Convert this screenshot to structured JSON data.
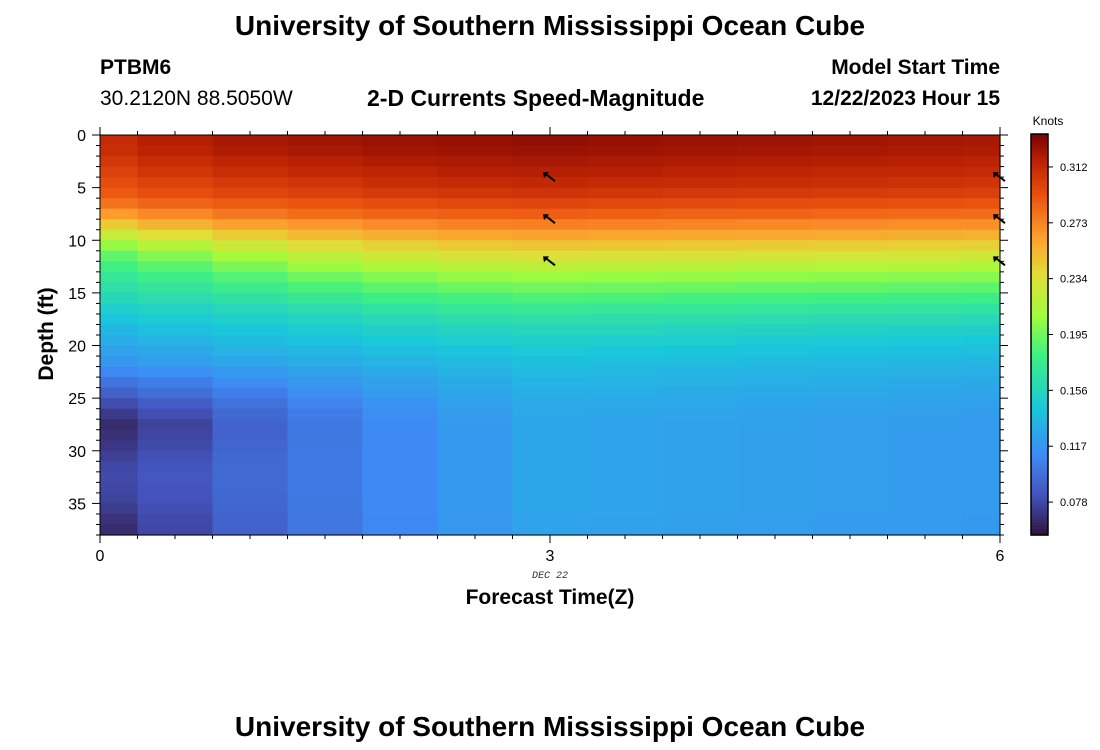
{
  "header": {
    "title": "University of Southern Mississippi Ocean Cube",
    "station_id": "PTBM6",
    "coords": "30.2120N  88.5050W",
    "subtitle": "2-D Currents Speed-Magnitude",
    "model_start_label": "Model Start Time",
    "model_start_value": "12/22/2023 Hour 15"
  },
  "footer": {
    "title": "University of Southern Mississippi Ocean Cube"
  },
  "chart_data": {
    "type": "heatmap",
    "xlabel": "Forecast Time(Z)",
    "ylabel": "Depth (ft)",
    "date_label": "DEC 22",
    "x_ticks": [
      "0",
      "3",
      "6"
    ],
    "x_range": [
      0,
      6
    ],
    "y_ticks": [
      "0",
      "5",
      "10",
      "15",
      "20",
      "25",
      "30",
      "35"
    ],
    "y_range": [
      0,
      38
    ],
    "y_inverted": true,
    "x": [
      0,
      0.5,
      1,
      1.5,
      2,
      2.5,
      3,
      3.5,
      4,
      4.5,
      5,
      5.5,
      6
    ],
    "depth_ft": [
      0.5,
      1.5,
      2.5,
      3.5,
      4.5,
      5.5,
      6.5,
      7.5,
      8.5,
      9.5,
      10.5,
      11.5,
      12.5,
      13.5,
      14.5,
      15.5,
      16.5,
      17.5,
      18.5,
      19.5,
      20.5,
      21.5,
      22.5,
      23.5,
      24.5,
      25.5,
      26.5,
      27.5,
      28.5,
      29.5,
      30.5,
      31.5,
      32.5,
      33.5,
      34.5,
      35.5,
      36.5,
      37.5
    ],
    "values": [
      [
        0.312,
        0.318,
        0.322,
        0.324,
        0.326,
        0.327,
        0.328,
        0.327,
        0.326,
        0.325,
        0.324,
        0.323,
        0.322
      ],
      [
        0.31,
        0.316,
        0.32,
        0.322,
        0.324,
        0.325,
        0.326,
        0.325,
        0.324,
        0.323,
        0.322,
        0.321,
        0.32
      ],
      [
        0.305,
        0.311,
        0.315,
        0.317,
        0.32,
        0.321,
        0.322,
        0.321,
        0.32,
        0.319,
        0.318,
        0.317,
        0.316
      ],
      [
        0.3,
        0.306,
        0.31,
        0.313,
        0.315,
        0.317,
        0.318,
        0.317,
        0.316,
        0.315,
        0.314,
        0.313,
        0.312
      ],
      [
        0.295,
        0.3,
        0.304,
        0.307,
        0.31,
        0.312,
        0.313,
        0.312,
        0.311,
        0.31,
        0.309,
        0.308,
        0.307
      ],
      [
        0.29,
        0.294,
        0.298,
        0.301,
        0.304,
        0.306,
        0.307,
        0.306,
        0.305,
        0.304,
        0.303,
        0.302,
        0.301
      ],
      [
        0.28,
        0.285,
        0.289,
        0.292,
        0.295,
        0.297,
        0.298,
        0.297,
        0.296,
        0.295,
        0.294,
        0.293,
        0.292
      ],
      [
        0.265,
        0.272,
        0.278,
        0.282,
        0.285,
        0.287,
        0.288,
        0.287,
        0.286,
        0.285,
        0.284,
        0.283,
        0.282
      ],
      [
        0.245,
        0.255,
        0.262,
        0.267,
        0.271,
        0.274,
        0.275,
        0.274,
        0.273,
        0.272,
        0.271,
        0.27,
        0.269
      ],
      [
        0.225,
        0.236,
        0.245,
        0.252,
        0.257,
        0.26,
        0.262,
        0.261,
        0.26,
        0.259,
        0.258,
        0.257,
        0.256
      ],
      [
        0.205,
        0.217,
        0.228,
        0.236,
        0.242,
        0.246,
        0.248,
        0.247,
        0.246,
        0.245,
        0.244,
        0.243,
        0.242
      ],
      [
        0.19,
        0.2,
        0.212,
        0.221,
        0.228,
        0.232,
        0.234,
        0.233,
        0.232,
        0.231,
        0.23,
        0.229,
        0.228
      ],
      [
        0.18,
        0.188,
        0.198,
        0.207,
        0.214,
        0.218,
        0.22,
        0.219,
        0.218,
        0.217,
        0.216,
        0.215,
        0.214
      ],
      [
        0.172,
        0.178,
        0.186,
        0.194,
        0.2,
        0.205,
        0.207,
        0.206,
        0.205,
        0.204,
        0.203,
        0.202,
        0.201
      ],
      [
        0.165,
        0.17,
        0.176,
        0.183,
        0.189,
        0.193,
        0.195,
        0.194,
        0.193,
        0.192,
        0.191,
        0.19,
        0.189
      ],
      [
        0.158,
        0.162,
        0.167,
        0.173,
        0.178,
        0.182,
        0.184,
        0.183,
        0.182,
        0.181,
        0.18,
        0.179,
        0.178
      ],
      [
        0.15,
        0.154,
        0.158,
        0.163,
        0.168,
        0.172,
        0.174,
        0.173,
        0.172,
        0.171,
        0.17,
        0.169,
        0.168
      ],
      [
        0.143,
        0.147,
        0.151,
        0.155,
        0.159,
        0.163,
        0.165,
        0.164,
        0.163,
        0.162,
        0.161,
        0.16,
        0.159
      ],
      [
        0.136,
        0.14,
        0.144,
        0.148,
        0.152,
        0.155,
        0.157,
        0.156,
        0.155,
        0.154,
        0.153,
        0.152,
        0.151
      ],
      [
        0.13,
        0.134,
        0.138,
        0.142,
        0.146,
        0.149,
        0.151,
        0.15,
        0.149,
        0.148,
        0.147,
        0.146,
        0.145
      ],
      [
        0.124,
        0.128,
        0.132,
        0.136,
        0.14,
        0.143,
        0.146,
        0.145,
        0.144,
        0.143,
        0.142,
        0.141,
        0.14
      ],
      [
        0.118,
        0.122,
        0.126,
        0.13,
        0.134,
        0.138,
        0.141,
        0.14,
        0.139,
        0.138,
        0.137,
        0.136,
        0.135
      ],
      [
        0.11,
        0.114,
        0.119,
        0.124,
        0.129,
        0.133,
        0.137,
        0.136,
        0.135,
        0.134,
        0.133,
        0.132,
        0.131
      ],
      [
        0.1,
        0.105,
        0.112,
        0.118,
        0.124,
        0.129,
        0.134,
        0.133,
        0.132,
        0.131,
        0.13,
        0.129,
        0.128
      ],
      [
        0.09,
        0.097,
        0.105,
        0.113,
        0.12,
        0.126,
        0.131,
        0.13,
        0.129,
        0.128,
        0.127,
        0.126,
        0.125
      ],
      [
        0.08,
        0.088,
        0.099,
        0.108,
        0.116,
        0.123,
        0.129,
        0.128,
        0.127,
        0.126,
        0.125,
        0.124,
        0.123
      ],
      [
        0.072,
        0.081,
        0.094,
        0.104,
        0.113,
        0.121,
        0.127,
        0.126,
        0.125,
        0.124,
        0.123,
        0.122,
        0.121
      ],
      [
        0.066,
        0.076,
        0.091,
        0.102,
        0.111,
        0.119,
        0.126,
        0.125,
        0.124,
        0.123,
        0.122,
        0.121,
        0.12
      ],
      [
        0.068,
        0.077,
        0.091,
        0.102,
        0.111,
        0.119,
        0.126,
        0.125,
        0.124,
        0.123,
        0.122,
        0.121,
        0.12
      ],
      [
        0.071,
        0.079,
        0.092,
        0.102,
        0.111,
        0.119,
        0.126,
        0.125,
        0.124,
        0.123,
        0.122,
        0.121,
        0.12
      ],
      [
        0.075,
        0.082,
        0.093,
        0.103,
        0.111,
        0.119,
        0.126,
        0.125,
        0.124,
        0.123,
        0.122,
        0.121,
        0.12
      ],
      [
        0.078,
        0.084,
        0.094,
        0.103,
        0.111,
        0.119,
        0.126,
        0.125,
        0.124,
        0.123,
        0.122,
        0.121,
        0.12
      ],
      [
        0.079,
        0.085,
        0.094,
        0.103,
        0.111,
        0.119,
        0.126,
        0.125,
        0.124,
        0.123,
        0.122,
        0.121,
        0.12
      ],
      [
        0.078,
        0.084,
        0.094,
        0.103,
        0.111,
        0.119,
        0.126,
        0.125,
        0.124,
        0.123,
        0.122,
        0.121,
        0.12
      ],
      [
        0.076,
        0.083,
        0.093,
        0.102,
        0.111,
        0.119,
        0.126,
        0.125,
        0.124,
        0.123,
        0.122,
        0.121,
        0.12
      ],
      [
        0.073,
        0.081,
        0.092,
        0.102,
        0.111,
        0.119,
        0.126,
        0.125,
        0.124,
        0.123,
        0.122,
        0.121,
        0.12
      ],
      [
        0.069,
        0.079,
        0.091,
        0.101,
        0.11,
        0.118,
        0.125,
        0.124,
        0.123,
        0.122,
        0.121,
        0.12,
        0.119
      ],
      [
        0.066,
        0.078,
        0.09,
        0.101,
        0.11,
        0.118,
        0.125,
        0.124,
        0.123,
        0.122,
        0.121,
        0.12,
        0.119
      ]
    ],
    "colorbar": {
      "label": "Knots",
      "min": 0.055,
      "max": 0.335,
      "ticks": [
        "0.312",
        "0.273",
        "0.234",
        "0.195",
        "0.156",
        "0.117",
        "0.078"
      ]
    },
    "vectors": [
      {
        "x": 3,
        "depth": 4
      },
      {
        "x": 3,
        "depth": 8
      },
      {
        "x": 3,
        "depth": 12
      },
      {
        "x": 6,
        "depth": 4
      },
      {
        "x": 6,
        "depth": 8
      },
      {
        "x": 6,
        "depth": 12
      }
    ],
    "grid": false
  }
}
